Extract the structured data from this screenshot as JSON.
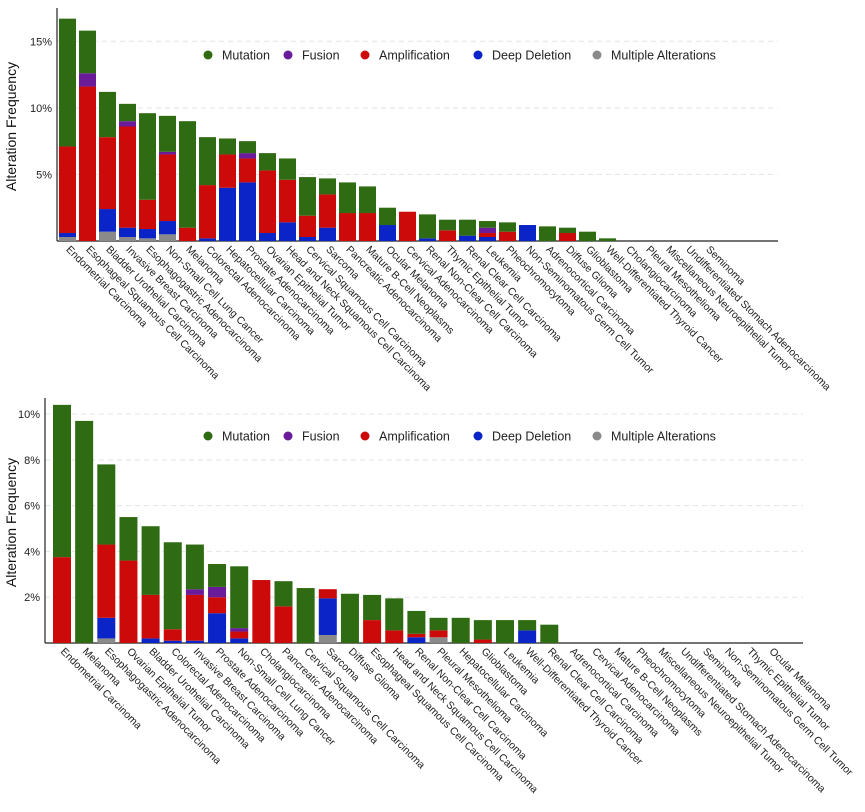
{
  "colors": {
    "mutation": "#2f6b12",
    "fusion": "#6a1b9a",
    "amplification": "#cc0a0a",
    "deep_deletion": "#0a24c8",
    "multiple": "#8a8a8a"
  },
  "legend": [
    {
      "key": "mutation",
      "label": "Mutation"
    },
    {
      "key": "fusion",
      "label": "Fusion"
    },
    {
      "key": "amplification",
      "label": "Amplification"
    },
    {
      "key": "deep_deletion",
      "label": "Deep Deletion"
    },
    {
      "key": "multiple",
      "label": "Multiple Alterations"
    }
  ],
  "chart_data": [
    {
      "type": "bar",
      "stacked": true,
      "title": "",
      "ylabel": "Alteration Frequency",
      "xlabel": "",
      "ylim": [
        0,
        17.5
      ],
      "yticks": [
        5,
        10,
        15
      ],
      "ytick_labels": [
        "5%",
        "10%",
        "15%"
      ],
      "grid": true,
      "legend_position": "top",
      "categories": [
        "Endometrial Carcinoma",
        "Esophageal Squamous Cell Carcinoma",
        "Bladder Urothelial Carcinoma",
        "Invasive Breast Carcinoma",
        "Esophagogastric Adenocarcinoma",
        "Non-Small Cell Lung Cancer",
        "Melanoma",
        "Colorectal Adenocarcinoma",
        "Hepatocellular Carcinoma",
        "Prostate Adenocarcinoma",
        "Ovarian Epithelial Tumor",
        "Head and Neck Squamous Cell Carcinoma",
        "Cervical Squamous Cell Carcinoma",
        "Sarcoma",
        "Pancreatic Adenocarcinoma",
        "Mature B-Cell Neoplasms",
        "Ocular Melanoma",
        "Cervical Adenocarcinoma",
        "Renal Non-Clear Cell Carcinoma",
        "Thymic Epithelial Tumor",
        "Renal Clear Cell Carcinoma",
        "Leukemia",
        "Pheochromocytoma",
        "Non-Seminomatous Germ Cell Tumor",
        "Adrenocortical Carcinoma",
        "Diffuse Glioma",
        "Glioblastoma",
        "Well-Differentiated Thyroid Cancer",
        "Cholangiocarcinoma",
        "Pleural Mesothelioma",
        "Miscellaneous Neuroepithelial Tumor",
        "Undifferentiated Stomach Adenocarcinoma",
        "Seminoma"
      ],
      "series": [
        {
          "name": "Multiple Alterations",
          "key": "multiple",
          "values": [
            0.3,
            0,
            0.7,
            0.3,
            0.2,
            0.5,
            0,
            0,
            0,
            0,
            0,
            0,
            0,
            0,
            0,
            0,
            0,
            0,
            0,
            0,
            0,
            0,
            0,
            0,
            0,
            0,
            0,
            0,
            0,
            0,
            0,
            0,
            0
          ]
        },
        {
          "name": "Deep Deletion",
          "key": "deep_deletion",
          "values": [
            0.3,
            0,
            1.7,
            0.7,
            0.7,
            1.0,
            0,
            0.2,
            4.0,
            4.4,
            0.6,
            1.4,
            0.3,
            1.0,
            0,
            0,
            1.2,
            0,
            0.2,
            0,
            0.4,
            0.3,
            0,
            1.2,
            0,
            0,
            0,
            0,
            0,
            0,
            0,
            0,
            0
          ]
        },
        {
          "name": "Amplification",
          "key": "amplification",
          "values": [
            6.5,
            11.6,
            5.4,
            7.6,
            2.2,
            5.0,
            1.0,
            4.0,
            2.5,
            1.8,
            4.7,
            3.2,
            1.6,
            2.5,
            2.1,
            2.1,
            0,
            2.2,
            0,
            0.8,
            0,
            0.3,
            0.7,
            0,
            0,
            0.6,
            0,
            0,
            0,
            0,
            0,
            0,
            0
          ]
        },
        {
          "name": "Fusion",
          "key": "fusion",
          "values": [
            0,
            1.0,
            0,
            0.4,
            0,
            0.2,
            0,
            0,
            0,
            0.4,
            0,
            0,
            0,
            0,
            0,
            0,
            0,
            0,
            0,
            0,
            0,
            0.4,
            0,
            0,
            0,
            0,
            0,
            0,
            0,
            0,
            0,
            0,
            0
          ]
        },
        {
          "name": "Mutation",
          "key": "mutation",
          "values": [
            9.6,
            3.2,
            3.4,
            1.3,
            6.5,
            2.7,
            8.0,
            3.6,
            1.2,
            0.9,
            1.3,
            1.6,
            2.9,
            1.2,
            2.3,
            2.0,
            1.3,
            0,
            1.8,
            0.8,
            1.2,
            0.5,
            0.7,
            0,
            1.1,
            0.4,
            0.7,
            0.2,
            0,
            0,
            0,
            0,
            0
          ]
        }
      ]
    },
    {
      "type": "bar",
      "stacked": true,
      "title": "",
      "ylabel": "Alteration Frequency",
      "xlabel": "",
      "ylim": [
        0,
        10.7
      ],
      "yticks": [
        2,
        4,
        6,
        8,
        10
      ],
      "ytick_labels": [
        "2%",
        "4%",
        "6%",
        "8%",
        "10%"
      ],
      "grid": true,
      "legend_position": "top",
      "categories": [
        "Endometrial Carcinoma",
        "Melanoma",
        "Esophagogastric Adenocarcinoma",
        "Ovarian Epithelial Tumor",
        "Bladder Urothelial Carcinoma",
        "Colorectal Adenocarcinoma",
        "Invasive Breast Carcinoma",
        "Prostate Adenocarcinoma",
        "Non-Small Cell Lung Cancer",
        "Cholangiocarcinoma",
        "Pancreatic Adenocarcinoma",
        "Cervical Squamous Cell Carcinoma",
        "Sarcoma",
        "Diffuse Glioma",
        "Esophageal Squamous Cell Carcinoma",
        "Head and Neck Squamous Cell Carcinoma",
        "Renal Non-Clear Cell Carcinoma",
        "Pleural Mesothelioma",
        "Hepatocellular Carcinoma",
        "Glioblastoma",
        "Leukemia",
        "Well-Differentiated Thyroid Cancer",
        "Renal Clear Cell Carcinoma",
        "Adrenocortical Carcinoma",
        "Cervical Adenocarcinoma",
        "Mature B-Cell Neoplasms",
        "Pheochromocytoma",
        "Miscellaneous Neuroepithelial Tumor",
        "Undifferentiated Stomach Adenocarcinoma",
        "Seminoma",
        "Non-Seminomatous Germ Cell Tumor",
        "Thymic Epithelial Tumor",
        "Ocular Melanoma"
      ],
      "series": [
        {
          "name": "Multiple Alterations",
          "key": "multiple",
          "values": [
            0,
            0,
            0.2,
            0,
            0,
            0,
            0,
            0,
            0,
            0,
            0,
            0,
            0.35,
            0,
            0,
            0,
            0,
            0.25,
            0,
            0,
            0,
            0,
            0,
            0,
            0,
            0,
            0,
            0,
            0,
            0,
            0,
            0,
            0
          ]
        },
        {
          "name": "Deep Deletion",
          "key": "deep_deletion",
          "values": [
            0,
            0,
            0.9,
            0,
            0.2,
            0.1,
            0.1,
            1.3,
            0.2,
            0,
            0,
            0,
            1.6,
            0,
            0,
            0,
            0.25,
            0,
            0,
            0,
            0,
            0.55,
            0,
            0,
            0,
            0,
            0,
            0,
            0,
            0,
            0,
            0,
            0
          ]
        },
        {
          "name": "Amplification",
          "key": "amplification",
          "values": [
            3.75,
            0,
            3.2,
            3.6,
            1.9,
            0.5,
            2.0,
            0.7,
            0.3,
            2.75,
            1.6,
            0,
            0.4,
            0,
            1.0,
            0.55,
            0.15,
            0.3,
            0,
            0.15,
            0,
            0,
            0,
            0,
            0,
            0,
            0,
            0,
            0,
            0,
            0,
            0,
            0
          ]
        },
        {
          "name": "Fusion",
          "key": "fusion",
          "values": [
            0,
            0,
            0,
            0,
            0,
            0,
            0.25,
            0.45,
            0.15,
            0,
            0,
            0,
            0,
            0,
            0,
            0,
            0,
            0,
            0,
            0,
            0,
            0,
            0,
            0,
            0,
            0,
            0,
            0,
            0,
            0,
            0,
            0,
            0
          ]
        },
        {
          "name": "Mutation",
          "key": "mutation",
          "values": [
            6.65,
            9.7,
            3.5,
            1.9,
            3.0,
            3.8,
            1.95,
            1.0,
            2.7,
            0,
            1.1,
            2.4,
            0,
            2.15,
            1.1,
            1.4,
            1.0,
            0.55,
            1.1,
            0.85,
            1.0,
            0.45,
            0.8,
            0,
            0,
            0,
            0,
            0,
            0,
            0,
            0,
            0,
            0
          ]
        }
      ]
    }
  ]
}
